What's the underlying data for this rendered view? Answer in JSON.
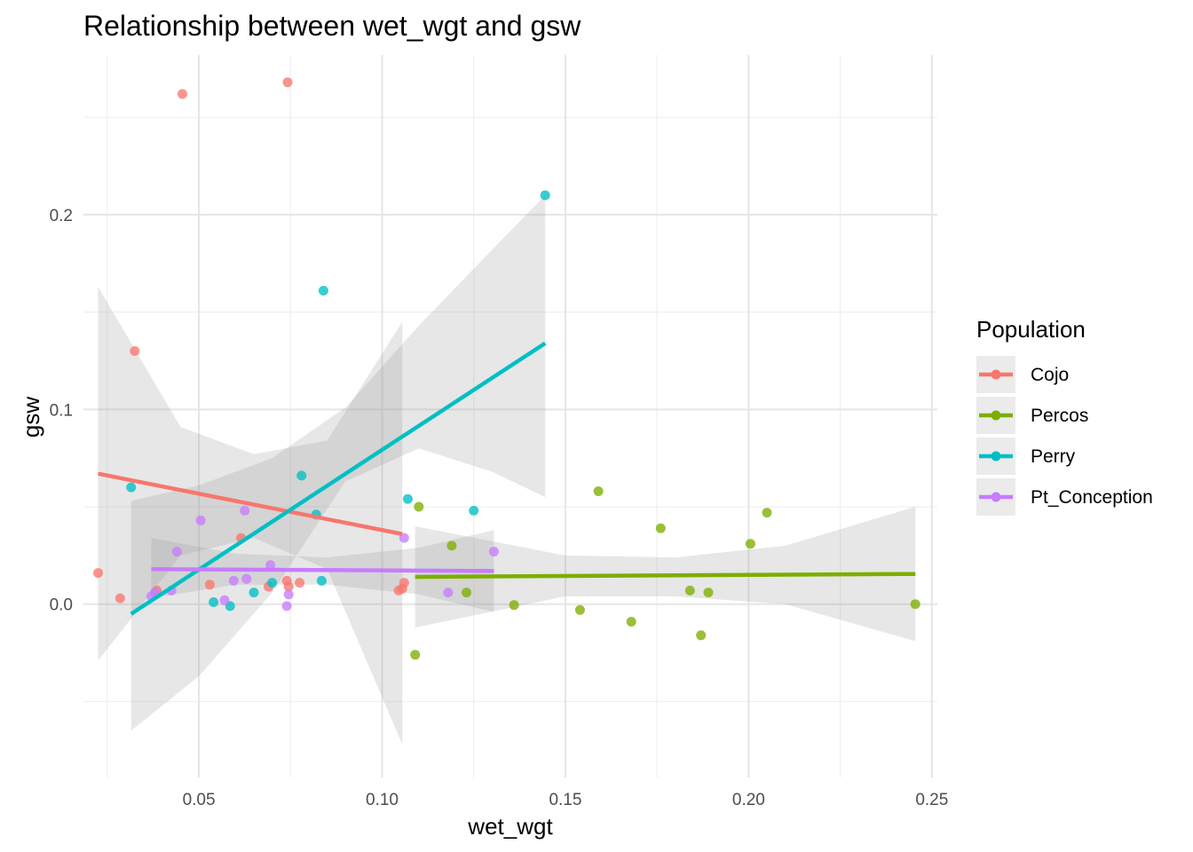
{
  "chart_data": {
    "type": "scatter",
    "title": "Relationship between wet_wgt and gsw",
    "xlabel": "wet_wgt",
    "ylabel": "gsw",
    "xlim": [
      0.0185,
      0.2515
    ],
    "ylim": [
      -0.089,
      0.282
    ],
    "x_ticks": [
      0.05,
      0.1,
      0.15,
      0.2,
      0.25
    ],
    "x_tick_labels": [
      "0.05",
      "0.10",
      "0.15",
      "0.20",
      "0.25"
    ],
    "y_ticks": [
      0.0,
      0.1,
      0.2
    ],
    "y_tick_labels": [
      "0.0",
      "0.1",
      "0.2"
    ],
    "grid": true,
    "legend": {
      "title": "Population",
      "position": "right"
    },
    "series": [
      {
        "name": "Cojo",
        "color": "#F8766D",
        "points": [
          [
            0.0225,
            0.016
          ],
          [
            0.0285,
            0.003
          ],
          [
            0.0325,
            0.13
          ],
          [
            0.0385,
            0.007
          ],
          [
            0.0455,
            0.262
          ],
          [
            0.053,
            0.01
          ],
          [
            0.0615,
            0.034
          ],
          [
            0.069,
            0.009
          ],
          [
            0.074,
            0.012
          ],
          [
            0.0745,
            0.009
          ],
          [
            0.0742,
            0.268
          ],
          [
            0.0775,
            0.011
          ],
          [
            0.1045,
            0.007
          ],
          [
            0.1055,
            0.008
          ],
          [
            0.106,
            0.011
          ]
        ],
        "fit": {
          "x": [
            0.0225,
            0.1055
          ],
          "y": [
            0.067,
            0.036
          ]
        },
        "band": {
          "x": [
            0.0225,
            0.045,
            0.065,
            0.085,
            0.1055
          ],
          "upper": [
            0.163,
            0.091,
            0.077,
            0.084,
            0.145
          ],
          "lower": [
            -0.029,
            0.025,
            0.034,
            0.018,
            -0.072
          ]
        }
      },
      {
        "name": "Percos",
        "color": "#7CAE00",
        "points": [
          [
            0.109,
            -0.026
          ],
          [
            0.11,
            0.05
          ],
          [
            0.119,
            0.03
          ],
          [
            0.123,
            0.006
          ],
          [
            0.136,
            -0.0005
          ],
          [
            0.154,
            -0.003
          ],
          [
            0.159,
            0.058
          ],
          [
            0.168,
            -0.009
          ],
          [
            0.176,
            0.039
          ],
          [
            0.184,
            0.007
          ],
          [
            0.187,
            -0.016
          ],
          [
            0.189,
            0.006
          ],
          [
            0.2005,
            0.031
          ],
          [
            0.205,
            0.047
          ],
          [
            0.2455,
            0.0
          ]
        ],
        "fit": {
          "x": [
            0.109,
            0.2455
          ],
          "y": [
            0.014,
            0.0155
          ]
        },
        "band": {
          "x": [
            0.109,
            0.15,
            0.18,
            0.21,
            0.2455
          ],
          "upper": [
            0.04,
            0.025,
            0.024,
            0.03,
            0.05
          ],
          "lower": [
            -0.012,
            0.004,
            0.004,
            0.0,
            -0.019
          ]
        }
      },
      {
        "name": "Perry",
        "color": "#00BFC4",
        "points": [
          [
            0.0315,
            0.06
          ],
          [
            0.054,
            0.001
          ],
          [
            0.0585,
            -0.001
          ],
          [
            0.065,
            0.006
          ],
          [
            0.07,
            0.011
          ],
          [
            0.078,
            0.066
          ],
          [
            0.082,
            0.046
          ],
          [
            0.0835,
            0.012
          ],
          [
            0.084,
            0.161
          ],
          [
            0.107,
            0.054
          ],
          [
            0.125,
            0.048
          ],
          [
            0.1445,
            0.21
          ]
        ],
        "fit": {
          "x": [
            0.0315,
            0.1445
          ],
          "y": [
            -0.005,
            0.134
          ]
        },
        "band": {
          "x": [
            0.0315,
            0.05,
            0.07,
            0.09,
            0.11,
            0.13,
            0.1445
          ],
          "upper": [
            0.053,
            0.061,
            0.075,
            0.101,
            0.143,
            0.182,
            0.21
          ],
          "lower": [
            -0.065,
            -0.037,
            0.006,
            0.063,
            0.08,
            0.068,
            0.055
          ]
        }
      },
      {
        "name": "Pt_Conception",
        "color": "#C77CFF",
        "points": [
          [
            0.037,
            0.004
          ],
          [
            0.038,
            0.006
          ],
          [
            0.0425,
            0.007
          ],
          [
            0.044,
            0.027
          ],
          [
            0.0505,
            0.043
          ],
          [
            0.057,
            0.002
          ],
          [
            0.0595,
            0.012
          ],
          [
            0.0625,
            0.048
          ],
          [
            0.063,
            0.013
          ],
          [
            0.0695,
            0.02
          ],
          [
            0.074,
            -0.001
          ],
          [
            0.0745,
            0.005
          ],
          [
            0.106,
            0.034
          ],
          [
            0.118,
            0.006
          ],
          [
            0.1305,
            0.027
          ]
        ],
        "fit": {
          "x": [
            0.037,
            0.1305
          ],
          "y": [
            0.018,
            0.017
          ]
        },
        "band": {
          "x": [
            0.037,
            0.06,
            0.085,
            0.11,
            0.1305
          ],
          "upper": [
            0.034,
            0.026,
            0.024,
            0.029,
            0.038
          ],
          "lower": [
            0.003,
            0.01,
            0.01,
            0.005,
            -0.004
          ]
        }
      }
    ]
  }
}
